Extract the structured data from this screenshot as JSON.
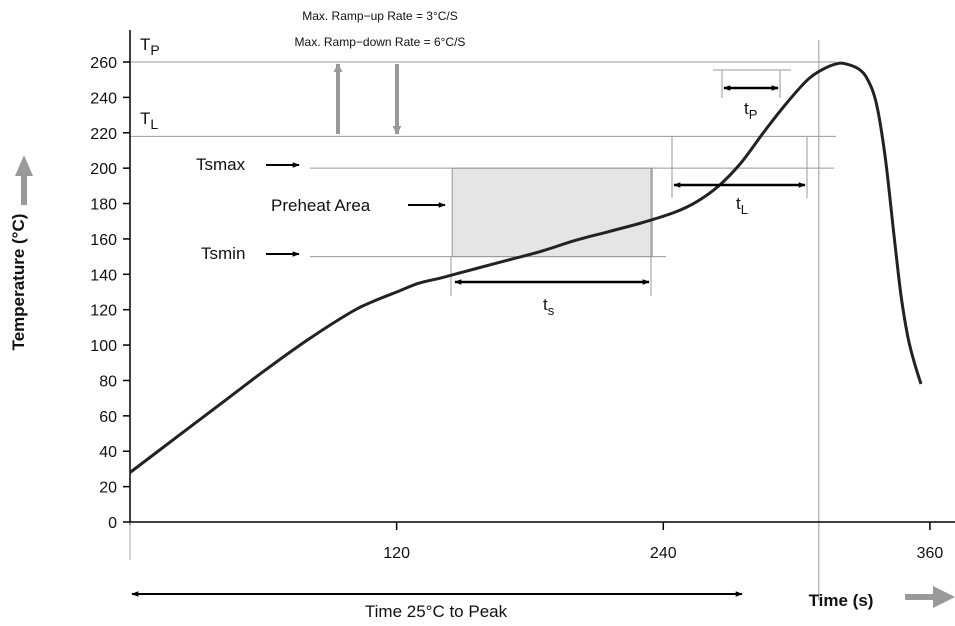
{
  "chart_data": {
    "type": "line",
    "ylabel": "Temperature (°C)",
    "xlabel": "Time (s)",
    "x_ticks": [
      120,
      240,
      360
    ],
    "y_ticks": [
      0,
      20,
      40,
      60,
      80,
      100,
      120,
      140,
      160,
      180,
      200,
      220,
      240,
      260
    ],
    "xlim": [
      0,
      405
    ],
    "ylim": [
      0,
      270
    ],
    "grid": false,
    "series": [
      {
        "x": [
          0,
          20,
          40,
          60,
          80,
          100,
          110,
          120,
          130,
          140,
          155,
          170,
          185,
          200,
          215,
          230,
          245,
          255,
          265,
          275,
          285,
          295,
          305,
          312,
          318,
          322,
          328,
          332,
          336,
          340,
          344,
          347,
          350,
          353,
          356
        ],
        "y": [
          28,
          47,
          66,
          85,
          103,
          119,
          125,
          130,
          135,
          138,
          143,
          148,
          153,
          159,
          164,
          169,
          175,
          181,
          190,
          203,
          220,
          236,
          250,
          256,
          259,
          259,
          256,
          250,
          236,
          205,
          160,
          128,
          105,
          90,
          78
        ]
      }
    ],
    "reference_lines": {
      "Tp": 260,
      "TL": 218,
      "Tsmax": 200,
      "Tsmin": 150,
      "peak_time": 310
    },
    "preheat_area": {
      "x_start": 145,
      "x_end": 235,
      "y_min": 150,
      "y_max": 200
    },
    "annotations": {
      "tp_label": "T",
      "tp_sub": "P",
      "tl_label": "T",
      "tl_sub": "L",
      "tsmax": "Tsmax",
      "tsmin": "Tsmin",
      "preheat": "Preheat Area",
      "ramp_up": "Max. Ramp−up Rate = 3°C/S",
      "ramp_down": "Max. Ramp−down Rate = 6°C/S",
      "ts_label": "t",
      "ts_sub": "s",
      "tl_dur_label": "t",
      "tl_dur_sub": "L",
      "tp_dur_label": "t",
      "tp_dur_sub": "P",
      "time_to_peak": "Time 25°C to Peak"
    },
    "colors": {
      "curve": "#222222",
      "guide": "#999999",
      "shade": "#e5e5e5",
      "arrow_gray": "#999999"
    }
  }
}
